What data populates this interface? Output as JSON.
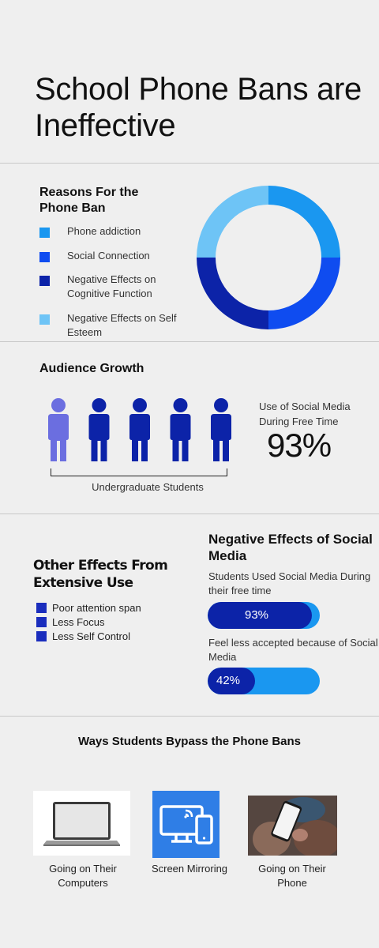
{
  "title": "School Phone Bans are Ineffective",
  "reasons": {
    "heading": "Reasons For the Phone Ban",
    "items": [
      {
        "label": "Phone addiction",
        "color": "#1a97f0"
      },
      {
        "label": "Social Connection",
        "color": "#0f4cf0"
      },
      {
        "label": "Negative Effects on Cognitive Function",
        "color": "#0c23a8"
      },
      {
        "label": "Negative Effects on Self Esteem",
        "color": "#6ec4f6"
      }
    ]
  },
  "chart_data": {
    "type": "pie",
    "categories": [
      "Phone addiction",
      "Social Connection",
      "Negative Effects on Cognitive Function",
      "Negative Effects on Self Esteem"
    ],
    "values": [
      25,
      25,
      25,
      25
    ],
    "colors": [
      "#1a97f0",
      "#0f4cf0",
      "#0c23a8",
      "#6ec4f6"
    ]
  },
  "audience": {
    "heading": "Audience Growth",
    "people_count": 5,
    "highlight_color": "#6b6ee0",
    "people_color": "#0c23a8",
    "group_label": "Undergraduate Students",
    "stat_label": "Use of Social Media During Free Time",
    "stat_value": "93%"
  },
  "other_effects": {
    "heading": "Other Effects From Extensive Use",
    "items": [
      "Poor attention span",
      "Less Focus",
      "Less Self Control"
    ]
  },
  "negative_effects": {
    "heading": "Negative Effects of Social Media",
    "bars": [
      {
        "caption": "Students Used Social Media During their free time",
        "label": "93%",
        "value": 93
      },
      {
        "caption": "Feel less accepted because of Social Media",
        "label": "42%",
        "value": 42
      }
    ]
  },
  "bypass": {
    "heading": "Ways Students Bypass the Phone Bans",
    "items": [
      {
        "label": "Going on Their Computers",
        "icon": "laptop-icon"
      },
      {
        "label": "Screen Mirroring",
        "icon": "screen-mirroring-icon"
      },
      {
        "label": "Going on Their Phone",
        "icon": "phone-in-hand-image"
      }
    ]
  }
}
